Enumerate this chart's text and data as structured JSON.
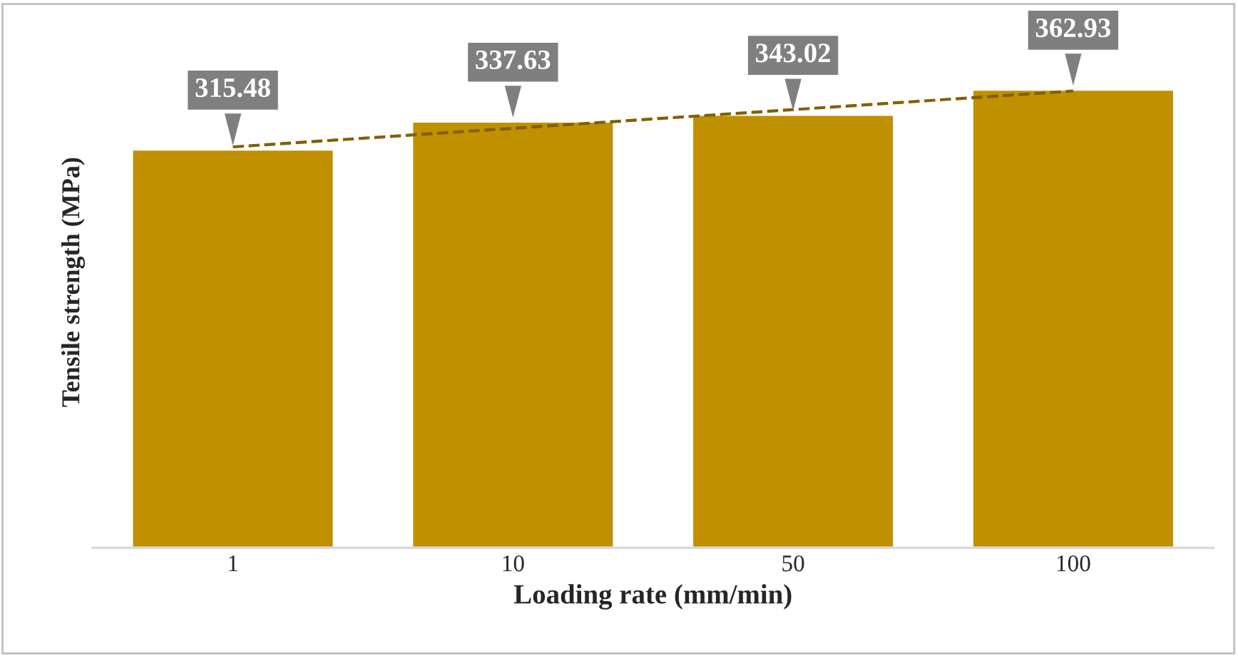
{
  "chart_data": {
    "type": "bar",
    "xlabel": "Loading rate (mm/min)",
    "ylabel": "Tensile strength (MPa)",
    "categories": [
      "1",
      "10",
      "50",
      "100"
    ],
    "series": [
      {
        "color": "#bf9000",
        "values": [
          315.48,
          337.63,
          343.02,
          362.93
        ],
        "value_labels": [
          "315.48",
          "337.63",
          "343.02",
          "362.93"
        ]
      },
      {
        "type": "line",
        "color": "#7f6000",
        "x": [
          "1",
          "100"
        ],
        "values": [
          317.6,
          361.9
        ],
        "line_style": "dashed"
      }
    ],
    "grid": false,
    "legend": false,
    "tick_labels": "x"
  }
}
